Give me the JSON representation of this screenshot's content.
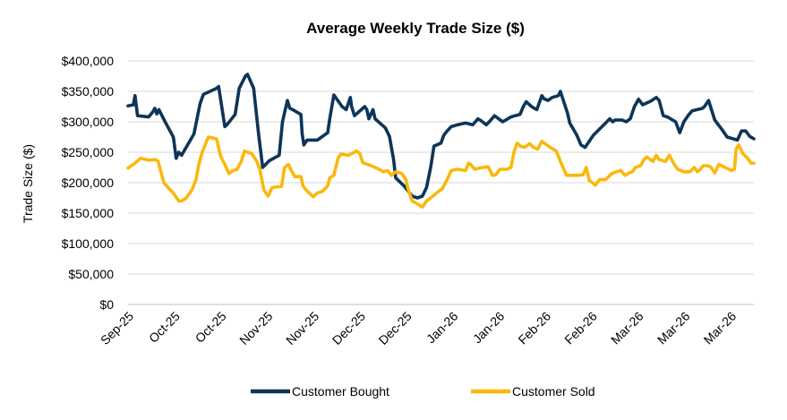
{
  "chart_data": {
    "type": "line",
    "title": "Average Weekly Trade Size ($)",
    "xlabel": "",
    "ylabel": "Trade Size ($)",
    "ylim": [
      0,
      400000
    ],
    "yticks": [
      0,
      50000,
      100000,
      150000,
      200000,
      250000,
      300000,
      350000,
      400000
    ],
    "ytick_labels": [
      "$0",
      "$50,000",
      "$100,000",
      "$150,000",
      "$200,000",
      "$250,000",
      "$300,000",
      "$350,000",
      "$400,000"
    ],
    "xticks": [
      "Sep-25",
      "Oct-25",
      "Oct-25",
      "Nov-25",
      "Nov-25",
      "Dec-25",
      "Dec-25",
      "Jan-26",
      "Jan-26",
      "Feb-26",
      "Feb-26",
      "Mar-26",
      "Mar-26",
      "Mar-26"
    ],
    "grid": true,
    "legend_position": "bottom",
    "series": [
      {
        "name": "Customer Bought",
        "color": "#0d3558",
        "points": [
          [
            0,
            326000
          ],
          [
            1.3,
            328000
          ],
          [
            1.7,
            343000
          ],
          [
            2.3,
            310000
          ],
          [
            5,
            308000
          ],
          [
            6,
            316000
          ],
          [
            6.5,
            322000
          ],
          [
            7,
            313000
          ],
          [
            7.5,
            320000
          ],
          [
            9,
            300000
          ],
          [
            11,
            275000
          ],
          [
            11.7,
            240000
          ],
          [
            12.3,
            250000
          ],
          [
            13,
            245000
          ],
          [
            16,
            280000
          ],
          [
            17.5,
            330000
          ],
          [
            18.3,
            345000
          ],
          [
            21.5,
            355000
          ],
          [
            22,
            358000
          ],
          [
            23.5,
            292000
          ],
          [
            24,
            295000
          ],
          [
            26,
            312000
          ],
          [
            27,
            355000
          ],
          [
            28.5,
            375000
          ],
          [
            29,
            378000
          ],
          [
            30.5,
            355000
          ],
          [
            31.7,
            280000
          ],
          [
            32.7,
            225000
          ],
          [
            34.3,
            236000
          ],
          [
            36.7,
            245000
          ],
          [
            37.5,
            300000
          ],
          [
            38.7,
            335000
          ],
          [
            39.3,
            322000
          ],
          [
            40,
            320000
          ],
          [
            42,
            312000
          ],
          [
            42.3,
            280000
          ],
          [
            42.7,
            262000
          ],
          [
            43.5,
            270000
          ],
          [
            46,
            270000
          ],
          [
            48.5,
            282000
          ],
          [
            49,
            305000
          ],
          [
            50,
            344000
          ],
          [
            52,
            325000
          ],
          [
            53,
            320000
          ],
          [
            53.5,
            330000
          ],
          [
            54,
            340000
          ],
          [
            54.3,
            325000
          ],
          [
            55,
            310000
          ],
          [
            57.5,
            325000
          ],
          [
            58,
            320000
          ],
          [
            58.5,
            305000
          ],
          [
            59.5,
            320000
          ],
          [
            60,
            305000
          ],
          [
            62.5,
            290000
          ],
          [
            63.5,
            276000
          ],
          [
            64.5,
            238000
          ],
          [
            65,
            208000
          ],
          [
            67,
            195000
          ],
          [
            69,
            178000
          ],
          [
            70.3,
            175000
          ],
          [
            71.5,
            178000
          ],
          [
            72.5,
            192000
          ],
          [
            73.5,
            225000
          ],
          [
            74.3,
            260000
          ],
          [
            76,
            265000
          ],
          [
            76.7,
            278000
          ],
          [
            77.5,
            285000
          ],
          [
            78.5,
            292000
          ],
          [
            80,
            295000
          ],
          [
            82,
            298000
          ],
          [
            83.7,
            295000
          ],
          [
            85,
            305000
          ],
          [
            85.7,
            302000
          ],
          [
            87,
            295000
          ],
          [
            88,
            302000
          ],
          [
            89,
            310000
          ],
          [
            91,
            300000
          ],
          [
            93,
            308000
          ],
          [
            94,
            310000
          ],
          [
            95.2,
            312000
          ],
          [
            96,
            325000
          ],
          [
            96.7,
            333000
          ],
          [
            98,
            325000
          ],
          [
            98.7,
            322000
          ],
          [
            99.3,
            320000
          ],
          [
            100.5,
            343000
          ],
          [
            101,
            338000
          ],
          [
            102,
            335000
          ],
          [
            103,
            340000
          ],
          [
            104.5,
            343000
          ],
          [
            105,
            350000
          ],
          [
            106.7,
            315000
          ],
          [
            107.3,
            298000
          ],
          [
            109,
            278000
          ],
          [
            110,
            262000
          ],
          [
            111,
            258000
          ],
          [
            113,
            278000
          ],
          [
            116,
            298000
          ],
          [
            117,
            305000
          ],
          [
            117.7,
            300000
          ],
          [
            118.3,
            303000
          ],
          [
            120,
            303000
          ],
          [
            121,
            300000
          ],
          [
            122,
            305000
          ],
          [
            123,
            325000
          ],
          [
            124,
            337000
          ],
          [
            125,
            328000
          ],
          [
            127,
            334000
          ],
          [
            128.3,
            340000
          ],
          [
            129,
            335000
          ],
          [
            130,
            310000
          ],
          [
            131,
            308000
          ],
          [
            133,
            300000
          ],
          [
            134,
            282000
          ],
          [
            135,
            300000
          ],
          [
            136,
            310000
          ],
          [
            137,
            318000
          ],
          [
            139.5,
            322000
          ],
          [
            140,
            325000
          ],
          [
            141,
            335000
          ],
          [
            142.5,
            303000
          ],
          [
            144.5,
            285000
          ],
          [
            145,
            280000
          ],
          [
            145.5,
            275000
          ],
          [
            148,
            270000
          ],
          [
            149,
            285000
          ],
          [
            150,
            285000
          ],
          [
            151,
            276000
          ],
          [
            152,
            272000
          ]
        ]
      },
      {
        "name": "Customer Sold",
        "color": "#f9b80c",
        "points": [
          [
            0,
            224000
          ],
          [
            1.7,
            232000
          ],
          [
            3,
            240000
          ],
          [
            5,
            237000
          ],
          [
            6.7,
            238000
          ],
          [
            7.3,
            235000
          ],
          [
            8.7,
            200000
          ],
          [
            10,
            190000
          ],
          [
            11,
            183000
          ],
          [
            12.3,
            170000
          ],
          [
            13,
            170000
          ],
          [
            14,
            174000
          ],
          [
            15.5,
            188000
          ],
          [
            16.5,
            205000
          ],
          [
            17.2,
            230000
          ],
          [
            18,
            250000
          ],
          [
            19.5,
            275000
          ],
          [
            21.5,
            272000
          ],
          [
            22.5,
            243000
          ],
          [
            23.5,
            230000
          ],
          [
            24.5,
            215000
          ],
          [
            25.5,
            220000
          ],
          [
            26.5,
            222000
          ],
          [
            27.5,
            235000
          ],
          [
            28.3,
            252000
          ],
          [
            29,
            250000
          ],
          [
            30,
            248000
          ],
          [
            31.3,
            235000
          ],
          [
            32,
            222000
          ],
          [
            33,
            188000
          ],
          [
            34,
            178000
          ],
          [
            35,
            192000
          ],
          [
            37.3,
            194000
          ],
          [
            38,
            225000
          ],
          [
            39,
            230000
          ],
          [
            39.5,
            222000
          ],
          [
            40.5,
            210000
          ],
          [
            42,
            210000
          ],
          [
            42.5,
            195000
          ],
          [
            43,
            190000
          ],
          [
            44,
            183000
          ],
          [
            45,
            177000
          ],
          [
            46,
            183000
          ],
          [
            47.3,
            186000
          ],
          [
            48.5,
            195000
          ],
          [
            49,
            208000
          ],
          [
            50,
            212000
          ],
          [
            51,
            240000
          ],
          [
            51.7,
            247000
          ],
          [
            53.5,
            245000
          ],
          [
            55,
            250000
          ],
          [
            55.5,
            252000
          ],
          [
            56.3,
            248000
          ],
          [
            57,
            233000
          ],
          [
            59,
            228000
          ],
          [
            60,
            225000
          ],
          [
            61,
            222000
          ],
          [
            62,
            218000
          ],
          [
            63,
            220000
          ],
          [
            64,
            212000
          ],
          [
            65,
            218000
          ],
          [
            66.5,
            215000
          ],
          [
            67.5,
            205000
          ],
          [
            68,
            190000
          ],
          [
            69,
            170000
          ],
          [
            70.3,
            165000
          ],
          [
            71.5,
            160000
          ],
          [
            72.5,
            170000
          ],
          [
            73.5,
            175000
          ],
          [
            75.3,
            185000
          ],
          [
            76.3,
            190000
          ],
          [
            77.5,
            205000
          ],
          [
            78.5,
            220000
          ],
          [
            80,
            222000
          ],
          [
            82,
            220000
          ],
          [
            82.7,
            232000
          ],
          [
            83.2,
            230000
          ],
          [
            84.2,
            222000
          ],
          [
            86,
            225000
          ],
          [
            87.5,
            226000
          ],
          [
            88.5,
            212000
          ],
          [
            89.3,
            213000
          ],
          [
            90.3,
            222000
          ],
          [
            92,
            222000
          ],
          [
            93,
            225000
          ],
          [
            93.8,
            252000
          ],
          [
            94.5,
            265000
          ],
          [
            95.3,
            260000
          ],
          [
            96.3,
            258000
          ],
          [
            97.5,
            264000
          ],
          [
            98.5,
            258000
          ],
          [
            99.5,
            255000
          ],
          [
            100.5,
            268000
          ],
          [
            101.3,
            264000
          ],
          [
            102.5,
            258000
          ],
          [
            104,
            252000
          ],
          [
            105,
            235000
          ],
          [
            106.5,
            212000
          ],
          [
            108,
            212000
          ],
          [
            109,
            212000
          ],
          [
            110.5,
            213000
          ],
          [
            111.3,
            225000
          ],
          [
            112,
            204000
          ],
          [
            113.5,
            196000
          ],
          [
            114.5,
            205000
          ],
          [
            116,
            205000
          ],
          [
            117.5,
            215000
          ],
          [
            118.7,
            218000
          ],
          [
            119.7,
            220000
          ],
          [
            120.7,
            212000
          ],
          [
            121.7,
            216000
          ],
          [
            122.5,
            218000
          ],
          [
            123.2,
            225000
          ],
          [
            124.5,
            228000
          ],
          [
            125.3,
            238000
          ],
          [
            126,
            242000
          ],
          [
            127.5,
            235000
          ],
          [
            128.3,
            245000
          ],
          [
            129,
            238000
          ],
          [
            130.5,
            235000
          ],
          [
            131.5,
            245000
          ],
          [
            132.5,
            232000
          ],
          [
            133.5,
            222000
          ],
          [
            135,
            218000
          ],
          [
            136.5,
            218000
          ],
          [
            137.5,
            225000
          ],
          [
            138.3,
            218000
          ],
          [
            139,
            222000
          ],
          [
            139.7,
            228000
          ],
          [
            140.7,
            228000
          ],
          [
            141.5,
            226000
          ],
          [
            142.5,
            216000
          ],
          [
            143.5,
            230000
          ],
          [
            145,
            225000
          ],
          [
            146,
            222000
          ],
          [
            146.5,
            220000
          ],
          [
            147.3,
            222000
          ],
          [
            147.7,
            255000
          ],
          [
            148.3,
            262000
          ],
          [
            149.3,
            248000
          ],
          [
            150.5,
            240000
          ],
          [
            151.3,
            232000
          ],
          [
            152,
            232000
          ]
        ]
      }
    ]
  }
}
